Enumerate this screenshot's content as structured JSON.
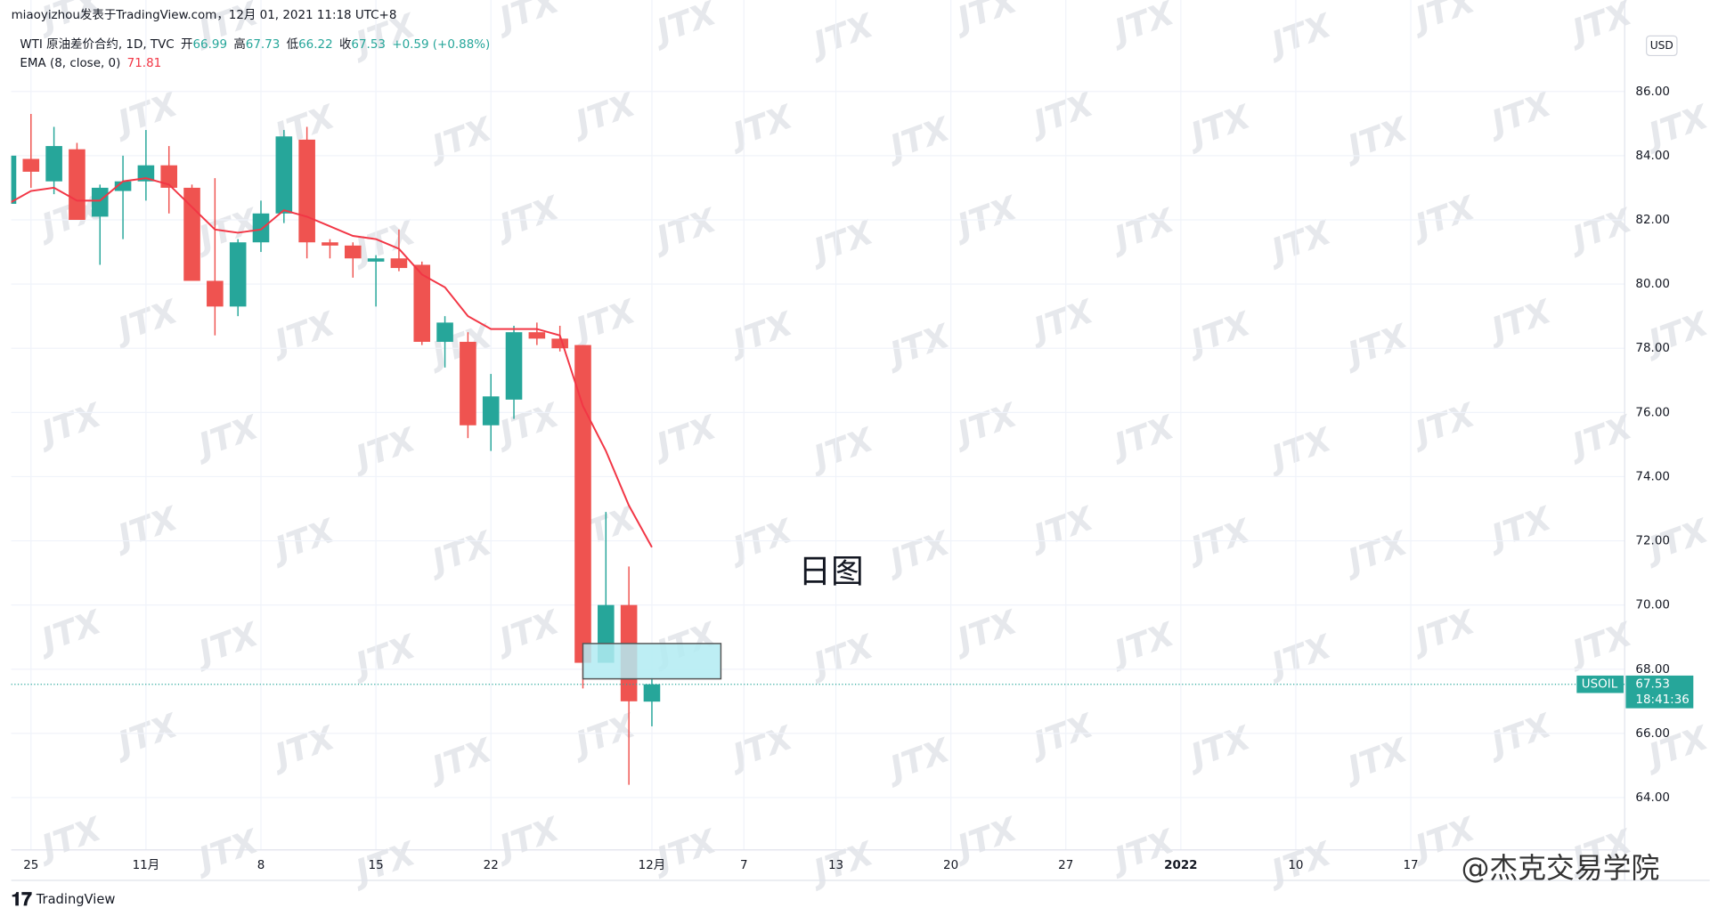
{
  "header": "miaoyizhou发表于TradingView.com，12月 01, 2021 11:18 UTC+8",
  "watermark": "JTX",
  "chart_data": {
    "type": "candlestick",
    "symbol": "WTI 原油差价合约, 1D, TVC",
    "ohlc_legend": [
      {
        "label": "开",
        "value": "66.99"
      },
      {
        "label": "高",
        "value": "67.73"
      },
      {
        "label": "低",
        "value": "66.22"
      },
      {
        "label": "收",
        "value": "67.53"
      }
    ],
    "change": "+0.59 (+0.88%)",
    "indicator": {
      "name": "EMA (8, close, 0)",
      "value": "71.81",
      "color": "#f23645"
    },
    "currency": "USD",
    "price_label": {
      "symbol": "USOIL",
      "price": 67.53,
      "countdown": "18:41:36"
    },
    "annotation": "日图",
    "up_color": "#26a69a",
    "down_color": "#ef5350",
    "open": [
      82.5,
      83.9,
      83.2,
      84.2,
      82.1,
      82.9,
      83.2,
      83.7,
      83.0,
      80.1,
      79.3,
      81.3,
      82.2,
      84.5,
      81.3,
      81.2,
      80.7,
      80.8,
      80.6,
      78.2,
      78.2,
      75.6,
      76.4,
      78.5,
      78.3,
      78.1,
      68.2,
      70.0,
      66.99
    ],
    "high": [
      84.0,
      85.3,
      84.9,
      84.4,
      83.1,
      84.0,
      84.8,
      84.3,
      83.1,
      83.3,
      81.4,
      82.6,
      84.8,
      84.9,
      81.4,
      81.3,
      80.9,
      81.7,
      80.7,
      79.0,
      78.5,
      77.2,
      78.7,
      78.8,
      78.7,
      78.1,
      72.9,
      71.2,
      67.73
    ],
    "low": [
      82.4,
      83.0,
      82.8,
      82.0,
      80.6,
      81.4,
      82.6,
      82.2,
      80.1,
      78.4,
      79.0,
      81.0,
      81.9,
      80.8,
      80.8,
      80.2,
      79.3,
      80.4,
      78.1,
      77.4,
      75.2,
      74.8,
      75.8,
      78.1,
      77.9,
      67.4,
      68.2,
      64.4,
      66.22
    ],
    "close": [
      84.0,
      83.5,
      84.3,
      82.0,
      83.0,
      83.2,
      83.7,
      83.0,
      80.1,
      79.3,
      81.3,
      82.2,
      84.6,
      81.3,
      81.2,
      80.8,
      80.8,
      80.5,
      78.2,
      78.8,
      75.6,
      76.5,
      78.5,
      78.3,
      78.0,
      68.2,
      70.0,
      67.0,
      67.53
    ],
    "ema": [
      82.5,
      82.9,
      83.0,
      82.6,
      82.6,
      83.2,
      83.3,
      83.1,
      82.4,
      81.7,
      81.6,
      81.7,
      82.3,
      82.1,
      81.8,
      81.5,
      81.4,
      81.1,
      80.3,
      79.9,
      79.0,
      78.6,
      78.6,
      78.6,
      78.4,
      76.2,
      74.8,
      73.1,
      71.8
    ],
    "box": {
      "x": [
        25.0,
        31.0
      ],
      "y": [
        67.7,
        68.8
      ],
      "color": "#b2ebf2"
    },
    "xlim": [
      0.14,
      70.3
    ],
    "xticks": [
      {
        "value": 1,
        "label": "25"
      },
      {
        "value": 6,
        "label": "11月"
      },
      {
        "value": 11,
        "label": "8"
      },
      {
        "value": 16,
        "label": "15"
      },
      {
        "value": 21,
        "label": "22"
      },
      {
        "value": 28,
        "label": "12月"
      },
      {
        "value": 32,
        "label": "7"
      },
      {
        "value": 36,
        "label": "13"
      },
      {
        "value": 41,
        "label": "20"
      },
      {
        "value": 46,
        "label": "27"
      },
      {
        "value": 51,
        "label": "2022"
      },
      {
        "value": 56,
        "label": "10"
      },
      {
        "value": 61,
        "label": "17"
      }
    ],
    "ylim": [
      62.37,
      87.9
    ],
    "yticks": [
      {
        "value": 64,
        "label": "64.00"
      },
      {
        "value": 66,
        "label": "66.00"
      },
      {
        "value": 68,
        "label": "68.00"
      },
      {
        "value": 70,
        "label": "70.00"
      },
      {
        "value": 72,
        "label": "72.00"
      },
      {
        "value": 74,
        "label": "74.00"
      },
      {
        "value": 76,
        "label": "76.00"
      },
      {
        "value": 78,
        "label": "78.00"
      },
      {
        "value": 80,
        "label": "80.00"
      },
      {
        "value": 82,
        "label": "82.00"
      },
      {
        "value": 84,
        "label": "84.00"
      },
      {
        "value": 86,
        "label": "86.00"
      }
    ],
    "grid": true
  },
  "footer": {
    "logo": "TradingView",
    "brand": "@杰克交易学院"
  }
}
